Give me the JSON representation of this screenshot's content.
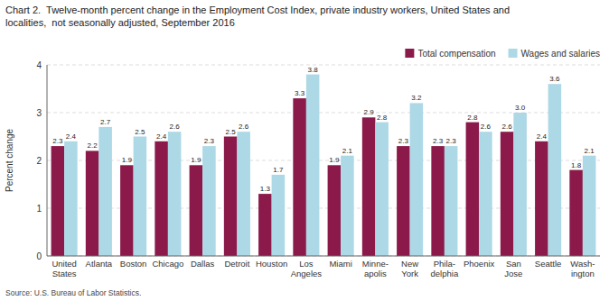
{
  "chart_data": {
    "type": "bar",
    "title": [
      "Chart 2.  Twelve-month percent change in the Employment Cost Index, private industry workers, United States and",
      "localities,  not seasonally adjusted, September 2016"
    ],
    "y_label": "Percent change",
    "annotations": [
      "Source: U.S. Bureau of Labor Statistics."
    ],
    "categories": [
      "United\nStates",
      "Atlanta",
      "Boston",
      "Chicago",
      "Dallas",
      "Detroit",
      "Houston",
      "Los\nAngeles",
      "Miami",
      "Minne-\napolis",
      "New\nYork",
      "Phila-\ndelphia",
      "Phoenix",
      "San\nJose",
      "Seattle",
      "Wash-\nington"
    ],
    "series": [
      {
        "name": "Total compensation",
        "color": "#8B1A4A",
        "values": [
          2.3,
          2.2,
          1.9,
          2.4,
          1.9,
          2.5,
          1.3,
          3.3,
          1.9,
          2.9,
          2.3,
          2.3,
          2.8,
          2.6,
          2.4,
          1.8
        ]
      },
      {
        "name": "Wages and salaries",
        "color": "#ADD8E6",
        "values": [
          2.4,
          2.7,
          2.5,
          2.6,
          2.3,
          2.6,
          1.7,
          3.8,
          2.1,
          2.8,
          3.2,
          2.3,
          2.6,
          3.0,
          3.6,
          2.1
        ],
        "value_labels": [
          "2.4",
          "2.7",
          "2.5",
          "2.6",
          "2.3",
          "2.6",
          "1.7",
          "3.8",
          "2.1",
          "2.8",
          "3.2",
          "2.3",
          "2.6",
          "3.0",
          "3.6",
          "2.1"
        ]
      }
    ],
    "ylim": [
      0.0,
      4.0
    ],
    "yticks": [
      0,
      1,
      2,
      3,
      4
    ],
    "grid": true,
    "legend": "upper right",
    "data_labels": true
  }
}
